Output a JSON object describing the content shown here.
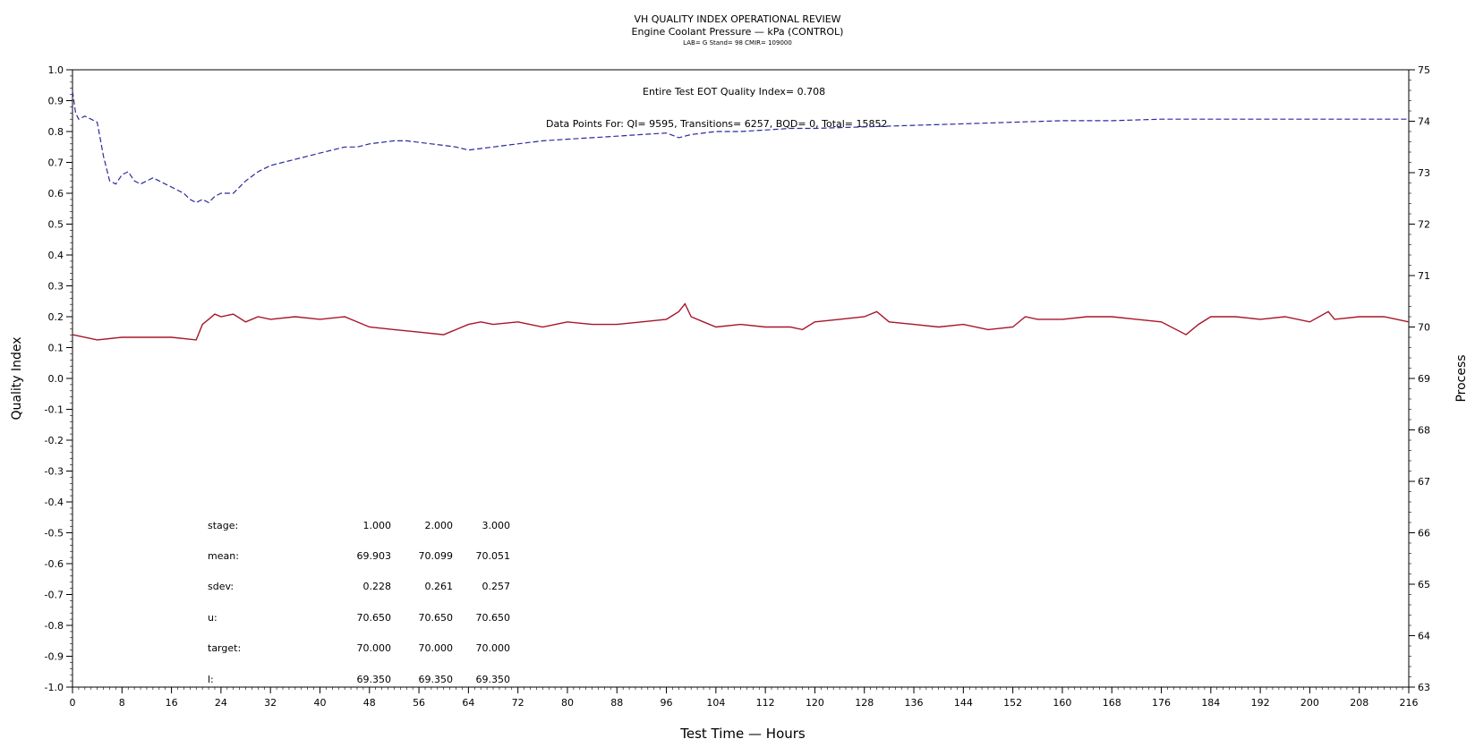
{
  "chart_data": {
    "type": "line",
    "title": "VH QUALITY INDEX OPERATIONAL REVIEW",
    "subtitle": "Engine Coolant Pressure — kPa (CONTROL)",
    "subtitle2": "LAB= G Stand= 98 CMIR= 109000",
    "xlabel": "Test Time — Hours",
    "ylabel": "Quality Index",
    "y2label": "Process",
    "xlim": [
      0,
      216
    ],
    "ylim": [
      -1.0,
      1.0
    ],
    "y2lim": [
      63,
      75
    ],
    "xticks": [
      "0",
      "8",
      "16",
      "24",
      "32",
      "40",
      "48",
      "56",
      "64",
      "72",
      "80",
      "88",
      "96",
      "104",
      "112",
      "120",
      "128",
      "136",
      "144",
      "152",
      "160",
      "168",
      "176",
      "184",
      "192",
      "200",
      "208",
      "216"
    ],
    "yticks": [
      "-1.0",
      "-0.9",
      "-0.8",
      "-0.7",
      "-0.6",
      "-0.5",
      "-0.4",
      "-0.3",
      "-0.2",
      "-0.1",
      "0.0",
      "0.1",
      "0.2",
      "0.3",
      "0.4",
      "0.5",
      "0.6",
      "0.7",
      "0.8",
      "0.9",
      "1.0"
    ],
    "y2ticks": [
      "63",
      "64",
      "65",
      "66",
      "67",
      "68",
      "69",
      "70",
      "71",
      "72",
      "73",
      "74",
      "75"
    ],
    "annotations": {
      "eot": "Entire Test EOT Quality Index=   0.708",
      "points": "Data Points For: QI=  9595, Transitions=  6257, BQD=     0, Total= 15852"
    },
    "series": [
      {
        "axis": "left",
        "color": "#2b2b9c",
        "style": "dashed",
        "x": [
          0,
          0.5,
          1,
          2,
          3,
          4,
          5,
          6,
          7,
          8,
          9,
          10,
          11,
          12,
          13,
          14,
          15,
          16,
          17,
          18,
          19,
          20,
          21,
          22,
          23,
          24,
          26,
          28,
          30,
          32,
          34,
          36,
          38,
          40,
          42,
          44,
          46,
          48,
          50,
          52,
          54,
          56,
          58,
          60,
          62,
          64,
          66,
          68,
          70,
          72,
          76,
          80,
          84,
          88,
          92,
          96,
          98,
          100,
          104,
          108,
          112,
          116,
          120,
          128,
          136,
          144,
          152,
          160,
          168,
          176,
          184,
          192,
          200,
          208,
          216
        ],
        "y": [
          0.93,
          0.86,
          0.84,
          0.85,
          0.84,
          0.83,
          0.72,
          0.64,
          0.63,
          0.66,
          0.67,
          0.64,
          0.63,
          0.64,
          0.65,
          0.64,
          0.63,
          0.62,
          0.61,
          0.6,
          0.58,
          0.57,
          0.58,
          0.57,
          0.59,
          0.6,
          0.6,
          0.64,
          0.67,
          0.69,
          0.7,
          0.71,
          0.72,
          0.73,
          0.74,
          0.75,
          0.75,
          0.76,
          0.765,
          0.77,
          0.77,
          0.765,
          0.76,
          0.755,
          0.75,
          0.74,
          0.745,
          0.75,
          0.755,
          0.76,
          0.77,
          0.775,
          0.78,
          0.785,
          0.79,
          0.795,
          0.78,
          0.79,
          0.8,
          0.8,
          0.805,
          0.81,
          0.81,
          0.815,
          0.82,
          0.825,
          0.83,
          0.835,
          0.835,
          0.84,
          0.84,
          0.84,
          0.84,
          0.84,
          0.84
        ]
      },
      {
        "axis": "right",
        "color": "#a8152a",
        "style": "solid",
        "x": [
          0,
          4,
          8,
          12,
          16,
          20,
          21,
          22,
          23,
          24,
          26,
          28,
          30,
          32,
          36,
          40,
          44,
          48,
          52,
          56,
          60,
          61,
          62,
          64,
          66,
          68,
          72,
          76,
          80,
          84,
          88,
          92,
          96,
          98,
          99,
          100,
          102,
          104,
          108,
          112,
          116,
          118,
          120,
          124,
          128,
          130,
          132,
          136,
          140,
          144,
          148,
          152,
          154,
          156,
          160,
          164,
          168,
          172,
          176,
          180,
          182,
          184,
          188,
          192,
          196,
          200,
          203,
          204,
          208,
          212,
          216
        ],
        "y": [
          69.85,
          69.75,
          69.8,
          69.8,
          69.8,
          69.75,
          70.05,
          70.15,
          70.25,
          70.2,
          70.25,
          70.1,
          70.2,
          70.15,
          70.2,
          70.15,
          70.2,
          70.0,
          69.95,
          69.9,
          69.85,
          69.9,
          69.95,
          70.05,
          70.1,
          70.05,
          70.1,
          70.0,
          70.1,
          70.05,
          70.05,
          70.1,
          70.15,
          70.3,
          70.45,
          70.2,
          70.1,
          70.0,
          70.05,
          70.0,
          70.0,
          69.95,
          70.1,
          70.15,
          70.2,
          70.3,
          70.1,
          70.05,
          70.0,
          70.05,
          69.95,
          70.0,
          70.2,
          70.15,
          70.15,
          70.2,
          70.2,
          70.15,
          70.1,
          69.85,
          70.05,
          70.2,
          70.2,
          70.15,
          70.2,
          70.1,
          70.3,
          70.15,
          70.2,
          70.2,
          70.1
        ]
      }
    ],
    "stats_table": {
      "row_labels": [
        "stage:",
        "mean:",
        "sdev:",
        "u:",
        "target:",
        "l:"
      ],
      "columns": [
        [
          "1.000",
          "69.903",
          "0.228",
          "70.650",
          "70.000",
          "69.350"
        ],
        [
          "2.000",
          "70.099",
          "0.261",
          "70.650",
          "70.000",
          "69.350"
        ],
        [
          "3.000",
          "70.051",
          "0.257",
          "70.650",
          "70.000",
          "69.350"
        ]
      ]
    }
  }
}
